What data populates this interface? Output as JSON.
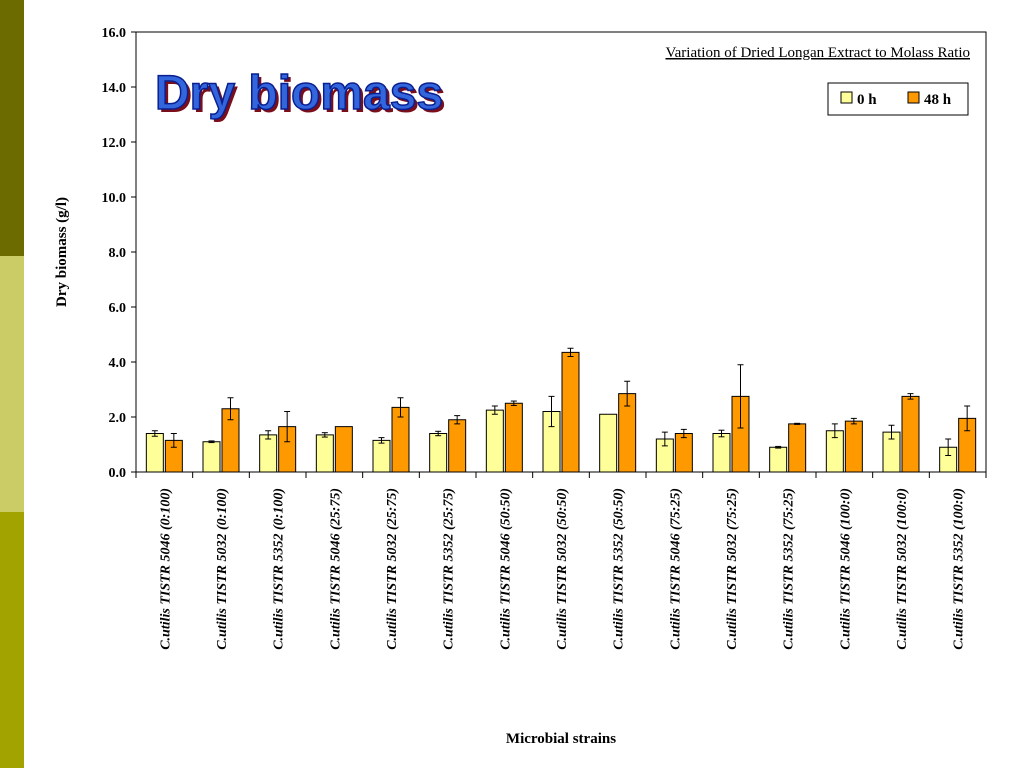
{
  "slide": {
    "title": "Dry biomass",
    "band_colors": [
      "#6b6b00",
      "#cccc66",
      "#a3a300"
    ]
  },
  "chart_data": {
    "type": "bar",
    "title": "",
    "subtitle": "Variation of Dried Longan Extract to Molass Ratio",
    "xlabel": "Microbial strains",
    "ylabel": "Dry biomass (g/l)",
    "ylim": [
      0,
      16
    ],
    "yticks": [
      "0.0",
      "2.0",
      "4.0",
      "6.0",
      "8.0",
      "10.0",
      "12.0",
      "14.0",
      "16.0"
    ],
    "grid": false,
    "legend_position": "top-right",
    "categories": [
      "C.utilis TISTR 5046 (0:100)",
      "C.utilis TISTR 5032 (0:100)",
      "C.utilis TISTR 5352 (0:100)",
      "C.utilis TISTR 5046 (25:75)",
      "C.utilis TISTR 5032 (25:75)",
      "C.utilis TISTR 5352 (25:75)",
      "C.utilis TISTR 5046 (50:50)",
      "C.utilis TISTR 5032 (50:50)",
      "C.utilis TISTR 5352 (50:50)",
      "C.utilis TISTR 5046 (75:25)",
      "C.utilis TISTR 5032 (75:25)",
      "C.utilis TISTR 5352 (75:25)",
      "C.utilis TISTR 5046 (100:0)",
      "C.utilis TISTR 5032 (100:0)",
      "C.utilis TISTR 5352 (100:0)"
    ],
    "series": [
      {
        "name": "0 h",
        "color": "#ffff99",
        "values": [
          1.4,
          1.1,
          1.35,
          1.35,
          1.15,
          1.4,
          2.25,
          2.2,
          2.1,
          1.2,
          1.4,
          0.9,
          1.5,
          1.45,
          0.9
        ],
        "errors": [
          0.1,
          0.03,
          0.15,
          0.08,
          0.1,
          0.08,
          0.15,
          0.55,
          0.0,
          0.25,
          0.12,
          0.03,
          0.25,
          0.25,
          0.3
        ]
      },
      {
        "name": "48 h",
        "color": "#ff9900",
        "values": [
          1.15,
          2.3,
          1.65,
          1.65,
          2.35,
          1.9,
          2.5,
          4.35,
          2.85,
          1.4,
          2.75,
          1.75,
          1.85,
          2.75,
          1.95
        ],
        "errors": [
          0.25,
          0.4,
          0.55,
          0.0,
          0.35,
          0.15,
          0.08,
          0.15,
          0.45,
          0.15,
          1.15,
          0.02,
          0.1,
          0.1,
          0.45
        ]
      }
    ]
  }
}
